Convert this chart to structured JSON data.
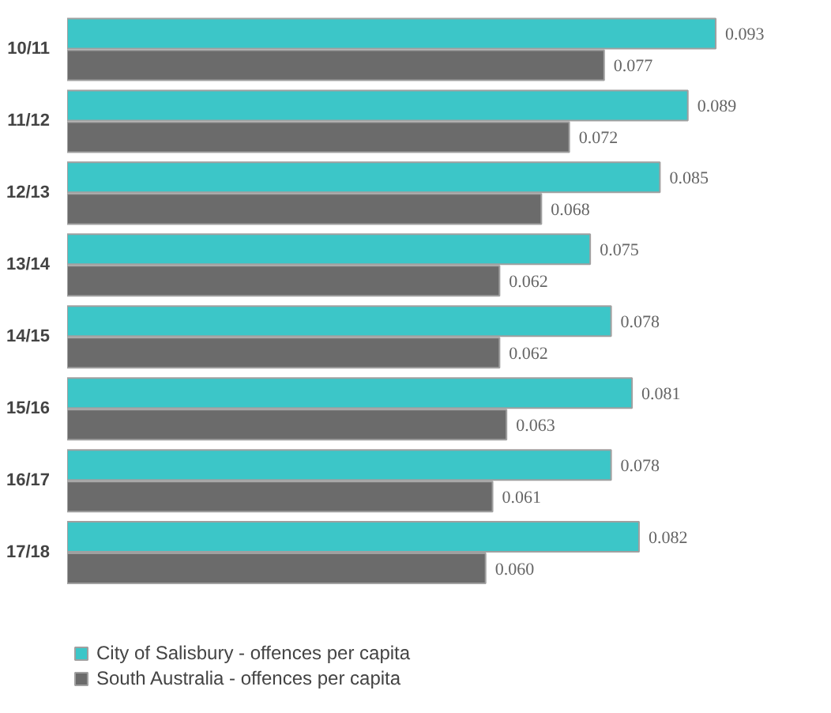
{
  "chart_data": {
    "type": "bar",
    "orientation": "horizontal",
    "categories": [
      "10/11",
      "11/12",
      "12/13",
      "13/14",
      "14/15",
      "15/16",
      "16/17",
      "17/18"
    ],
    "series": [
      {
        "name": "City of Salisbury - offences per capita",
        "color": "#3cc6c8",
        "values": [
          0.093,
          0.089,
          0.085,
          0.075,
          0.078,
          0.081,
          0.078,
          0.082
        ],
        "value_labels": [
          "0.093",
          "0.089",
          "0.085",
          "0.075",
          "0.078",
          "0.081",
          "0.078",
          "0.082"
        ]
      },
      {
        "name": "South Australia - offences per capita",
        "color": "#6b6b6b",
        "values": [
          0.077,
          0.072,
          0.068,
          0.062,
          0.062,
          0.063,
          0.061,
          0.06
        ],
        "value_labels": [
          "0.077",
          "0.072",
          "0.068",
          "0.062",
          "0.062",
          "0.063",
          "0.061",
          "0.060"
        ]
      }
    ],
    "legend": "bottom left",
    "grid": false
  }
}
